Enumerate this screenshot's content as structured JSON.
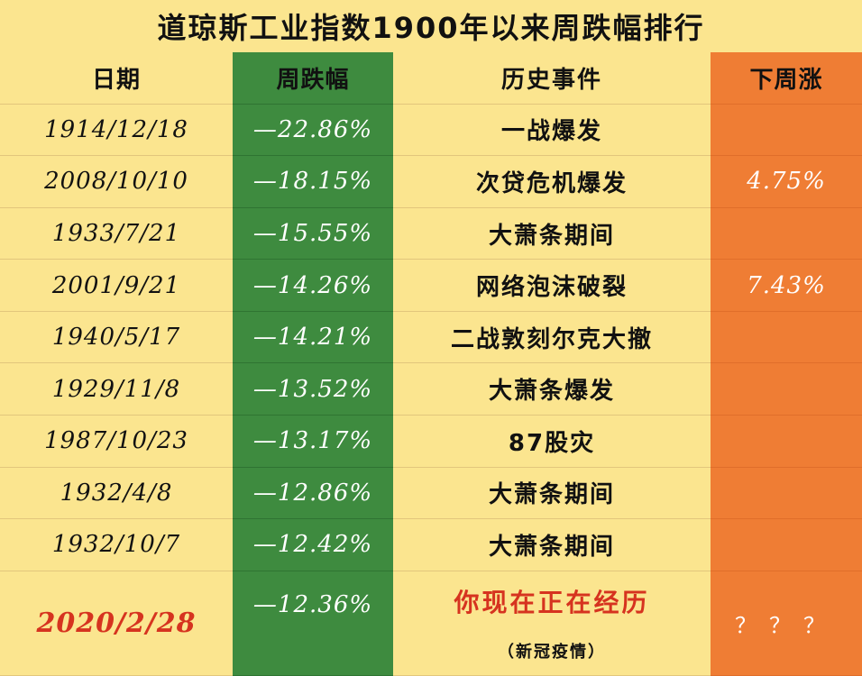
{
  "title": "道琼斯工业指数1900年以来周跌幅排行",
  "headers": {
    "date": "日期",
    "drop": "周跌幅",
    "event": "历史事件",
    "next": "下周涨"
  },
  "rows": [
    {
      "date": "1914/12/18",
      "drop": "—22.86%",
      "event": "一战爆发",
      "next": ""
    },
    {
      "date": "2008/10/10",
      "drop": "—18.15%",
      "event": "次贷危机爆发",
      "next": "4.75%"
    },
    {
      "date": "1933/7/21",
      "drop": "—15.55%",
      "event": "大萧条期间",
      "next": ""
    },
    {
      "date": "2001/9/21",
      "drop": "—14.26%",
      "event": "网络泡沫破裂",
      "next": "7.43%"
    },
    {
      "date": "1940/5/17",
      "drop": "—14.21%",
      "event": "二战敦刻尔克大撤",
      "next": ""
    },
    {
      "date": "1929/11/8",
      "drop": "—13.52%",
      "event": "大萧条爆发",
      "next": ""
    },
    {
      "date": "1987/10/23",
      "drop": "—13.17%",
      "event": "87股灾",
      "next": ""
    },
    {
      "date": "1932/4/8",
      "drop": "—12.86%",
      "event": "大萧条期间",
      "next": ""
    },
    {
      "date": "1932/10/7",
      "drop": "—12.42%",
      "event": "大萧条期间",
      "next": ""
    }
  ],
  "current": {
    "date": "2020/2/28",
    "drop": "—12.36%",
    "event": "你现在正在经历",
    "event_note": "（新冠疫情）",
    "next": "？？？"
  },
  "colors": {
    "background": "#fbe58f",
    "drop_column": "#3e8b3f",
    "next_column": "#ef7d34",
    "highlight_text": "#d6331f"
  }
}
